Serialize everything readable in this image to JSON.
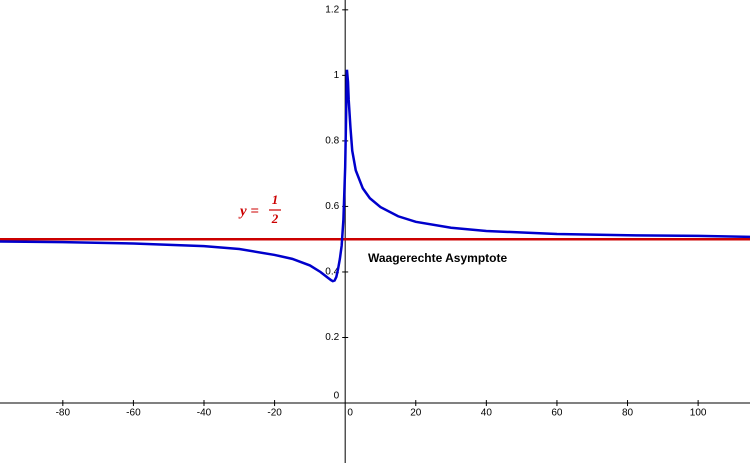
{
  "chart_data": {
    "type": "line",
    "x": [
      -97.8,
      -80,
      -60,
      -40,
      -30,
      -20,
      -15,
      -10,
      -7,
      -5,
      -4,
      -3.5,
      -3,
      -2.5,
      -2,
      -1.5,
      -1,
      -0.5,
      0,
      0.3,
      0.5,
      0.8,
      1,
      1.5,
      2,
      3,
      5,
      7,
      10,
      15,
      20,
      30,
      40,
      60,
      80,
      100,
      114.7
    ],
    "series": [
      {
        "color": "#0000cc",
        "values": [
          0.493,
          0.491,
          0.487,
          0.479,
          0.47,
          0.452,
          0.44,
          0.42,
          0.4,
          0.383,
          0.375,
          0.372,
          0.374,
          0.385,
          0.41,
          0.44,
          0.48,
          0.56,
          0.72,
          0.9,
          1.017,
          0.98,
          0.925,
          0.84,
          0.77,
          0.71,
          0.655,
          0.625,
          0.598,
          0.57,
          0.553,
          0.535,
          0.525,
          0.516,
          0.512,
          0.51,
          0.507
        ]
      }
    ],
    "asymptote": {
      "y": 0.5,
      "color": "#cc0000"
    },
    "asymptote_label": {
      "lhs": "y =",
      "numerator": "1",
      "denominator": "2"
    },
    "annotation": "Waagerechte Asymptote",
    "xlim": [
      -97.8,
      114.7
    ],
    "ylim": [
      -0.183,
      1.23
    ],
    "xticks": [
      -80,
      -60,
      -40,
      -20,
      0,
      20,
      40,
      60,
      80,
      100
    ],
    "yticks": [
      0,
      0.2,
      0.4,
      0.6,
      0.8,
      1,
      1.2
    ],
    "grid": false
  }
}
